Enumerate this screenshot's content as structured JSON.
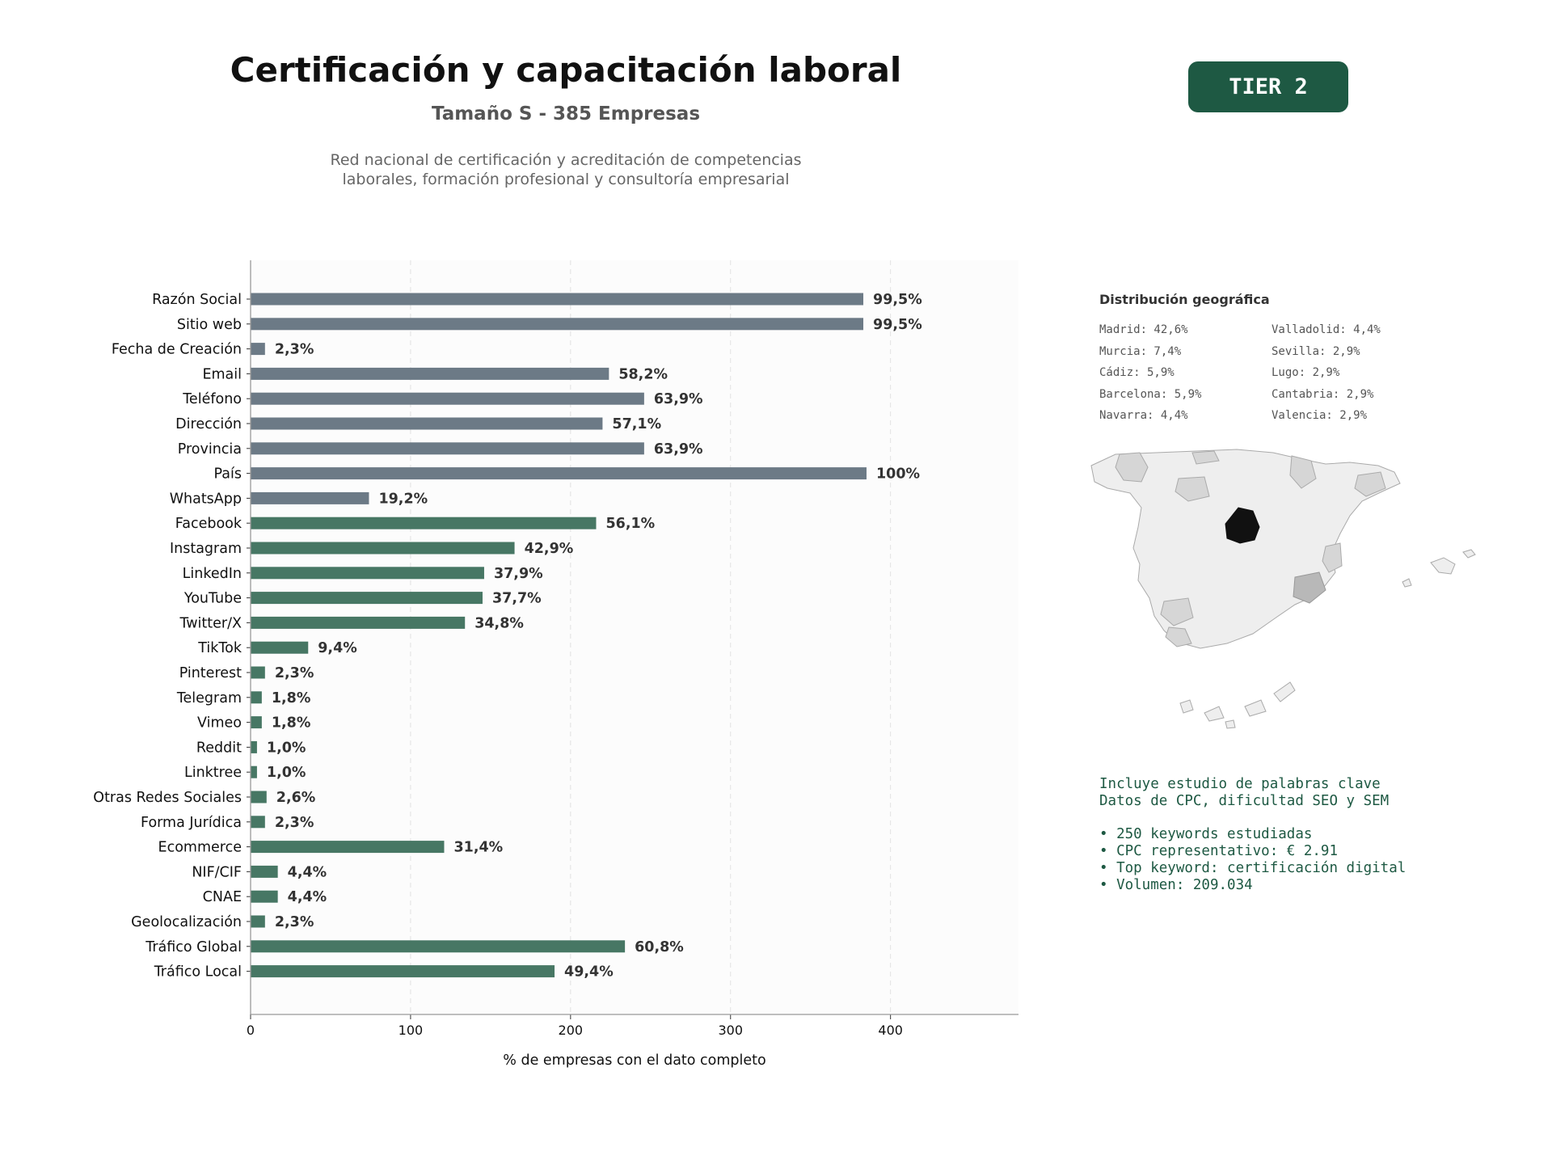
{
  "header": {
    "title": "Certificación y capacitación laboral",
    "subtitle": "Tamaño S - 385 Empresas",
    "description_lines": [
      "Red nacional de certificación y acreditación de competencias",
      "laborales, formación profesional y consultoría empresarial"
    ]
  },
  "badge": {
    "label": "TIER 2",
    "color": "#1e5943"
  },
  "chart_data": {
    "type": "bar",
    "orientation": "horizontal",
    "xlabel": "% de empresas con el dato completo",
    "xlim": [
      0,
      480
    ],
    "xticks": [
      0,
      100,
      200,
      300,
      400
    ],
    "grid": "vertical-dashed",
    "colors": {
      "basic": "#6c7a86",
      "digital": "#477764"
    },
    "categories": [
      "Razón Social",
      "Sitio web",
      "Fecha de Creación",
      "Email",
      "Teléfono",
      "Dirección",
      "Provincia",
      "País",
      "WhatsApp",
      "Facebook",
      "Instagram",
      "LinkedIn",
      "YouTube",
      "Twitter/X",
      "TikTok",
      "Pinterest",
      "Telegram",
      "Vimeo",
      "Reddit",
      "Linktree",
      "Otras Redes Sociales",
      "Forma Jurídica",
      "Ecommerce",
      "NIF/CIF",
      "CNAE",
      "Geolocalización",
      "Tráfico Global",
      "Tráfico Local"
    ],
    "values": [
      383,
      383,
      9,
      224,
      246,
      220,
      246,
      385,
      74,
      216,
      165,
      146,
      145,
      134,
      36,
      9,
      7,
      7,
      4,
      4,
      10,
      9,
      121,
      17,
      17,
      9,
      234,
      190
    ],
    "labels": [
      "99,5%",
      "99,5%",
      "2,3%",
      "58,2%",
      "63,9%",
      "57,1%",
      "63,9%",
      "100%",
      "19,2%",
      "56,1%",
      "42,9%",
      "37,9%",
      "37,7%",
      "34,8%",
      "9,4%",
      "2,3%",
      "1,8%",
      "1,8%",
      "1,0%",
      "1,0%",
      "2,6%",
      "2,3%",
      "31,4%",
      "4,4%",
      "4,4%",
      "2,3%",
      "60,8%",
      "49,4%"
    ],
    "group": [
      "basic",
      "basic",
      "basic",
      "basic",
      "basic",
      "basic",
      "basic",
      "basic",
      "basic",
      "digital",
      "digital",
      "digital",
      "digital",
      "digital",
      "digital",
      "digital",
      "digital",
      "digital",
      "digital",
      "digital",
      "digital",
      "digital",
      "digital",
      "digital",
      "digital",
      "digital",
      "digital",
      "digital"
    ]
  },
  "geo": {
    "title": "Distribución geográfica",
    "col_a": [
      "Madrid: 42,6%",
      "Murcia: 7,4%",
      "Cádiz: 5,9%",
      "Barcelona: 5,9%",
      "Navarra: 4,4%"
    ],
    "col_b": [
      "Valladolid: 4,4%",
      "Sevilla: 2,9%",
      "Lugo: 2,9%",
      "Cantabria: 2,9%",
      "Valencia: 2,9%"
    ]
  },
  "info": {
    "color": "#1e5943",
    "lines": [
      "Incluye estudio de palabras clave",
      "Datos de CPC, dificultad SEO y SEM"
    ],
    "bullets": [
      "• 250 keywords estudiadas",
      "• CPC representativo: € 2.91",
      "• Top keyword: certificación digital",
      "• Volumen: 209.034"
    ]
  }
}
